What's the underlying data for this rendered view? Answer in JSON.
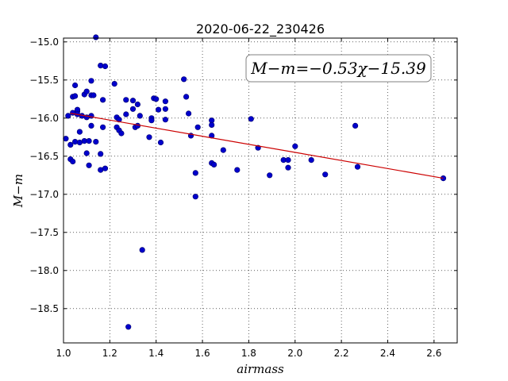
{
  "chart_data": {
    "type": "scatter",
    "title": "2020-06-22_230426",
    "xlabel": "airmass",
    "ylabel": "M−m",
    "xlim": [
      1.0,
      2.7
    ],
    "ylim": [
      -18.95,
      -14.95
    ],
    "y_inverted": true,
    "grid": true,
    "xticks": [
      1.0,
      1.2,
      1.4,
      1.6,
      1.8,
      2.0,
      2.2,
      2.4,
      2.6
    ],
    "xtick_labels": [
      "1.0",
      "1.2",
      "1.4",
      "1.6",
      "1.8",
      "2.0",
      "2.2",
      "2.4",
      "2.6"
    ],
    "yticks": [
      -15.0,
      -15.5,
      -16.0,
      -16.5,
      -17.0,
      -17.5,
      -18.0,
      -18.5
    ],
    "ytick_labels": [
      "−15.0",
      "−15.5",
      "−16.0",
      "−16.5",
      "−17.0",
      "−17.5",
      "−18.0",
      "−18.5"
    ],
    "annotation": "M−m=−0.53χ−15.39",
    "fit": {
      "slope": -0.53,
      "intercept": -15.39,
      "x_range": [
        1.03,
        2.64
      ],
      "color": "#cc0000"
    },
    "marker_color": "#0000cc",
    "points": [
      [
        1.01,
        -16.27
      ],
      [
        1.02,
        -15.97
      ],
      [
        1.03,
        -16.35
      ],
      [
        1.03,
        -16.54
      ],
      [
        1.04,
        -16.57
      ],
      [
        1.04,
        -15.72
      ],
      [
        1.04,
        -15.93
      ],
      [
        1.05,
        -15.71
      ],
      [
        1.05,
        -16.31
      ],
      [
        1.05,
        -15.57
      ],
      [
        1.06,
        -15.91
      ],
      [
        1.06,
        -15.89
      ],
      [
        1.06,
        -15.95
      ],
      [
        1.07,
        -16.18
      ],
      [
        1.07,
        -16.32
      ],
      [
        1.08,
        -15.97
      ],
      [
        1.09,
        -16.3
      ],
      [
        1.09,
        -15.69
      ],
      [
        1.1,
        -15.65
      ],
      [
        1.1,
        -15.99
      ],
      [
        1.1,
        -16.46
      ],
      [
        1.11,
        -16.3
      ],
      [
        1.11,
        -16.62
      ],
      [
        1.12,
        -15.97
      ],
      [
        1.12,
        -15.51
      ],
      [
        1.12,
        -16.1
      ],
      [
        1.12,
        -15.7
      ],
      [
        1.13,
        -15.7
      ],
      [
        1.14,
        -14.94
      ],
      [
        1.14,
        -16.31
      ],
      [
        1.16,
        -15.31
      ],
      [
        1.16,
        -16.47
      ],
      [
        1.16,
        -16.68
      ],
      [
        1.17,
        -15.76
      ],
      [
        1.17,
        -16.12
      ],
      [
        1.18,
        -15.32
      ],
      [
        1.18,
        -16.66
      ],
      [
        1.22,
        -15.55
      ],
      [
        1.23,
        -16.12
      ],
      [
        1.23,
        -15.99
      ],
      [
        1.24,
        -16.02
      ],
      [
        1.24,
        -16.16
      ],
      [
        1.25,
        -16.2
      ],
      [
        1.27,
        -15.95
      ],
      [
        1.27,
        -15.76
      ],
      [
        1.28,
        -18.74
      ],
      [
        1.3,
        -15.77
      ],
      [
        1.3,
        -15.88
      ],
      [
        1.31,
        -16.12
      ],
      [
        1.32,
        -16.1
      ],
      [
        1.32,
        -15.82
      ],
      [
        1.33,
        -15.97
      ],
      [
        1.34,
        -17.73
      ],
      [
        1.37,
        -16.25
      ],
      [
        1.38,
        -16.0
      ],
      [
        1.38,
        -16.03
      ],
      [
        1.39,
        -15.74
      ],
      [
        1.4,
        -15.75
      ],
      [
        1.41,
        -15.89
      ],
      [
        1.42,
        -16.32
      ],
      [
        1.44,
        -15.78
      ],
      [
        1.44,
        -15.88
      ],
      [
        1.44,
        -16.02
      ],
      [
        1.52,
        -15.49
      ],
      [
        1.53,
        -15.72
      ],
      [
        1.54,
        -15.94
      ],
      [
        1.55,
        -16.23
      ],
      [
        1.57,
        -16.72
      ],
      [
        1.57,
        -17.03
      ],
      [
        1.58,
        -16.12
      ],
      [
        1.64,
        -16.03
      ],
      [
        1.64,
        -16.09
      ],
      [
        1.64,
        -16.23
      ],
      [
        1.64,
        -16.59
      ],
      [
        1.65,
        -16.61
      ],
      [
        1.69,
        -16.42
      ],
      [
        1.75,
        -16.68
      ],
      [
        1.81,
        -16.01
      ],
      [
        1.84,
        -16.39
      ],
      [
        1.89,
        -16.75
      ],
      [
        1.95,
        -16.55
      ],
      [
        1.97,
        -16.55
      ],
      [
        1.97,
        -16.65
      ],
      [
        2.0,
        -16.37
      ],
      [
        2.07,
        -16.55
      ],
      [
        2.13,
        -16.74
      ],
      [
        2.26,
        -16.1
      ],
      [
        2.27,
        -16.64
      ],
      [
        2.64,
        -16.79
      ]
    ]
  }
}
